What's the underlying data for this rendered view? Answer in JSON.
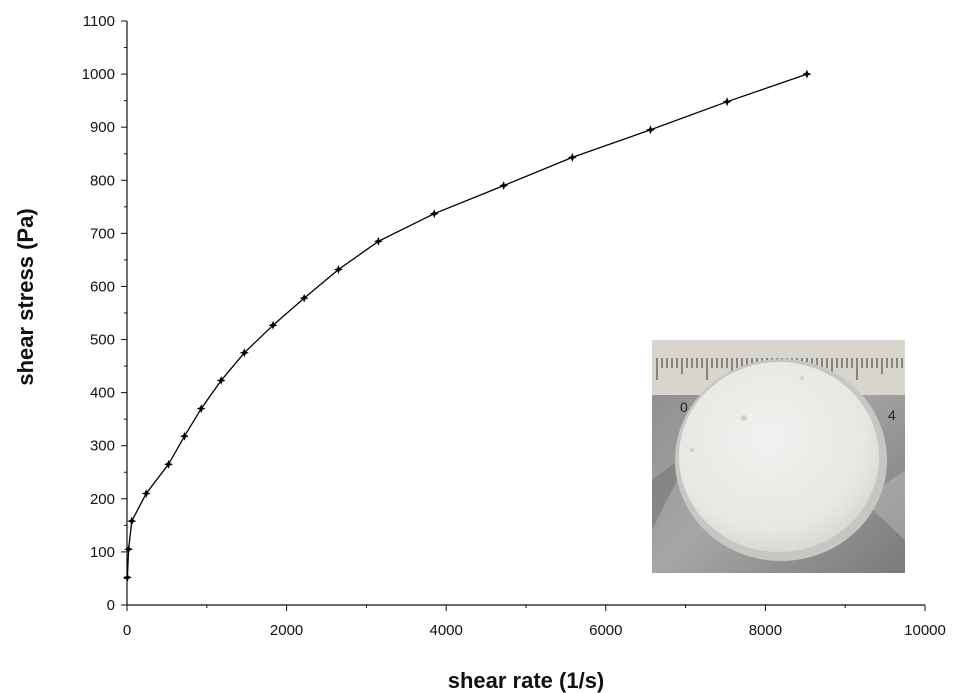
{
  "chart_data": {
    "type": "line",
    "xlabel": "shear rate (1/s)",
    "ylabel": "shear stress (Pa)",
    "xlim": [
      0,
      10000
    ],
    "ylim": [
      0,
      1100
    ],
    "x_ticks": [
      0,
      2000,
      4000,
      6000,
      8000,
      10000
    ],
    "y_ticks": [
      0,
      100,
      200,
      300,
      400,
      500,
      600,
      700,
      800,
      900,
      1000,
      1100
    ],
    "grid": false,
    "legend": "none",
    "marker": "star",
    "series": [
      {
        "x": [
          5,
          20,
          60,
          240,
          520,
          720,
          930,
          1180,
          1470,
          1830,
          2220,
          2650,
          3150,
          3850,
          4720,
          5580,
          6560,
          7520,
          8520
        ],
        "y": [
          52,
          105,
          158,
          210,
          265,
          318,
          370,
          423,
          475,
          527,
          578,
          632,
          685,
          737,
          790,
          843,
          895,
          948,
          1000
        ],
        "color": "#000000"
      }
    ],
    "inset": {
      "description_icon": "sample-disc-photo",
      "ruler_labels": [
        "0",
        "4"
      ]
    }
  }
}
